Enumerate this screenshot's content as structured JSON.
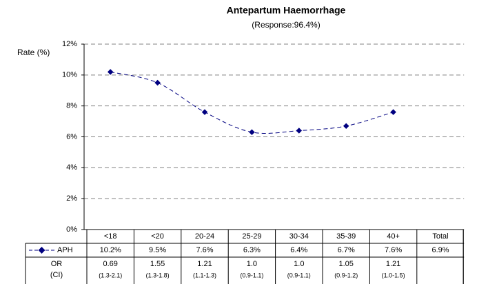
{
  "chart_data": {
    "type": "line",
    "title": "Antepartum Haemorrhage",
    "subtitle": "(Response:96.4%)",
    "y_label": "Rate (%)",
    "categories": [
      "<18",
      "<20",
      "20-24",
      "25-29",
      "30-34",
      "35-39",
      "40+"
    ],
    "series": [
      {
        "name": "APH",
        "color": "#000080",
        "values": [
          10.2,
          9.5,
          7.6,
          6.3,
          6.4,
          6.7,
          7.6
        ],
        "value_labels": [
          "10.2%",
          "9.5%",
          "7.6%",
          "6.3%",
          "6.4%",
          "6.7%",
          "7.6%"
        ]
      }
    ],
    "total": {
      "label": "Total",
      "value": 6.9,
      "value_label": "6.9%"
    },
    "or_header": [
      "OR",
      "(CI)"
    ],
    "or_values": [
      "0.69",
      "1.55",
      "1.21",
      "1.0",
      "1.0",
      "1.05",
      "1.21"
    ],
    "ci_values": [
      "(1.3-2.1)",
      "(1.3-1.8)",
      "(1.1-1.3)",
      "(0.9-1.1)",
      "(0.9-1.1)",
      "(0.9-1.2)",
      "(1.0-1.5)"
    ],
    "ylim": [
      0,
      12
    ],
    "yticks": [
      {
        "value": 0,
        "label": "0%"
      },
      {
        "value": 2,
        "label": "2%"
      },
      {
        "value": 4,
        "label": "4%"
      },
      {
        "value": 6,
        "label": "6%"
      },
      {
        "value": 8,
        "label": "8%"
      },
      {
        "value": 10,
        "label": "10%"
      },
      {
        "value": 12,
        "label": "12%"
      }
    ],
    "grid": true
  }
}
